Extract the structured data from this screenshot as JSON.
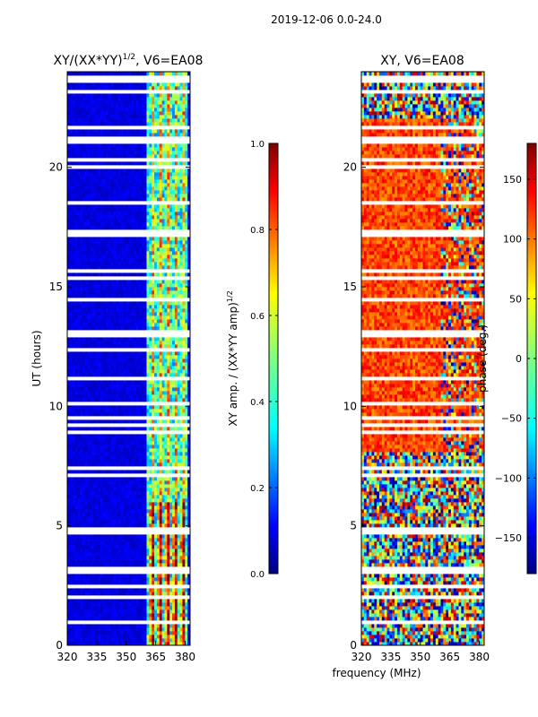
{
  "page": {
    "suptitle": "2019-12-06 0.0-24.0",
    "xlabel": "frequency (MHz)",
    "ylabel": "UT (hours)"
  },
  "chart_data": [
    {
      "type": "heatmap",
      "title": "XY/(XX*YY)^(1/2), V6=EA08",
      "title_main": "XY/(XX*YY)",
      "title_sup": "1/2",
      "title_tail": ", V6=EA08",
      "xlim": [
        320,
        382.5
      ],
      "ylim": [
        0,
        24
      ],
      "xticks": [
        320,
        335,
        350,
        365,
        380
      ],
      "xtick_labels": [
        "320",
        "335",
        "350",
        "365",
        "380"
      ],
      "yticks": [
        0,
        5,
        10,
        15,
        20
      ],
      "ytick_labels": [
        "0",
        "5",
        "10",
        "15",
        "20"
      ],
      "colorbar": {
        "label": "XY amp. / (XX*YY amp)^(1/2)",
        "label_main": "XY amp. / (XX*YY amp)",
        "label_sup": "1/2",
        "range": [
          0.0,
          1.0
        ],
        "ticks": [
          0.0,
          0.2,
          0.4,
          0.6,
          0.8,
          1.0
        ],
        "tick_labels": [
          "0.0",
          "0.2",
          "0.4",
          "0.6",
          "0.8",
          "1.0"
        ],
        "colormap": "jet"
      },
      "description": "normalized cross-correlation amplitude; mostly low (~0.1) with a bright band of channels near 362-380 MHz reaching ~0.5-0.9"
    },
    {
      "type": "heatmap",
      "title": "XY, V6=EA08",
      "xlim": [
        320,
        382.5
      ],
      "ylim": [
        0,
        24
      ],
      "xticks": [
        320,
        335,
        350,
        365,
        380
      ],
      "xtick_labels": [
        "320",
        "335",
        "350",
        "365",
        "380"
      ],
      "yticks": [
        0,
        5,
        10,
        15,
        20
      ],
      "ytick_labels": [
        "0",
        "5",
        "10",
        "15",
        "20"
      ],
      "colorbar": {
        "label": "phase (deg.)",
        "range": [
          -180,
          180
        ],
        "ticks": [
          -150,
          -100,
          -50,
          0,
          50,
          100,
          150
        ],
        "tick_labels": [
          "−150",
          "−100",
          "−50",
          "0",
          "50",
          "100",
          "150"
        ],
        "colormap": "jet"
      },
      "description": "cross-correlation phase; predominantly +50 to +150 deg (orange/red) between ~8-22 UT, mixed phases elsewhere"
    }
  ],
  "colors": {
    "jet": [
      "#00007f",
      "#0000ff",
      "#007fff",
      "#00ffff",
      "#7fff7f",
      "#ffff00",
      "#ff7f00",
      "#ff0000",
      "#7f0000"
    ]
  }
}
